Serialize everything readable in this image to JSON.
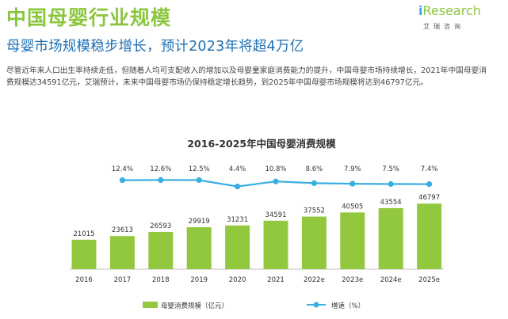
{
  "page": {
    "title": "中国母婴行业规模",
    "subtitle": "母婴市场规模稳步增长，预计2023年将超4万亿",
    "description": "尽管近年来人口出生率持续走低，但随着人均可支配收入的增加以及母婴童家庭消费能力的提升，中国母婴市场持续增长，2021年中国母婴消费规模达34591亿元，艾瑞预计，未来中国母婴市场仍保持稳定增长趋势，到2025年中国母婴市场规模将达到46797亿元。",
    "logo_text": "Research",
    "logo_letter": "i",
    "logo_sub": "艾瑞咨询"
  },
  "colors": {
    "accent_green": "#8cc63f",
    "bar": "#92c83e",
    "line": "#3aaee0",
    "subtitle_blue": "#1c6fb5"
  },
  "chart_data": {
    "type": "bar+line",
    "title": "2016-2025年中国母婴消费规模",
    "categories": [
      "2016",
      "2017",
      "2018",
      "2019",
      "2020",
      "2021",
      "2022e",
      "2023e",
      "2024e",
      "2025e"
    ],
    "series": [
      {
        "name": "母婴消费规模（亿元）",
        "type": "bar",
        "values": [
          21015,
          23613,
          26593,
          29919,
          31231,
          34591,
          37552,
          40505,
          43554,
          46797
        ],
        "labels": [
          "21015",
          "23613",
          "26593",
          "29919",
          "31231",
          "34591",
          "37552",
          "40505",
          "43554",
          "46797"
        ]
      },
      {
        "name": "增速（%）",
        "type": "line",
        "values": [
          null,
          12.4,
          12.6,
          12.5,
          4.4,
          10.8,
          8.6,
          7.9,
          7.5,
          7.4
        ],
        "labels": [
          "",
          "12.4%",
          "12.6%",
          "12.5%",
          "4.4%",
          "10.8%",
          "8.6%",
          "7.9%",
          "7.5%",
          "7.4%"
        ]
      }
    ],
    "legend_position": "bottom",
    "grid": false
  }
}
